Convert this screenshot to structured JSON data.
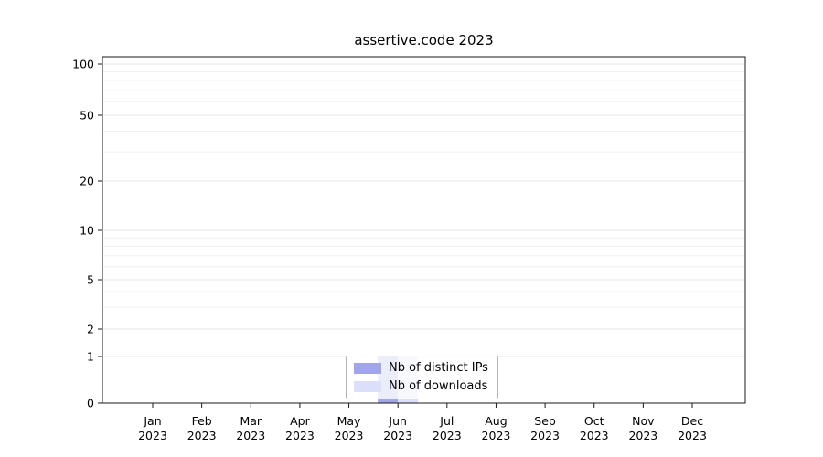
{
  "title": "assertive.code 2023",
  "chart_data": {
    "type": "bar",
    "title": "assertive.code 2023",
    "categories": [
      "Jan 2023",
      "Feb 2023",
      "Mar 2023",
      "Apr 2023",
      "May 2023",
      "Jun 2023",
      "Jul 2023",
      "Aug 2023",
      "Sep 2023",
      "Oct 2023",
      "Nov 2023",
      "Dec 2023"
    ],
    "series": [
      {
        "name": "Nb of distinct IPs",
        "color": "#a0a6e8",
        "values": [
          0,
          0,
          0,
          0,
          0,
          1,
          0,
          0,
          0,
          0,
          0,
          0
        ]
      },
      {
        "name": "Nb of downloads",
        "color": "#dcdff9",
        "values": [
          0,
          0,
          0,
          0,
          0,
          1,
          0,
          0,
          0,
          0,
          0,
          0
        ]
      }
    ],
    "y_axis": {
      "scale": "symlog",
      "ticks": [
        0,
        1,
        2,
        5,
        10,
        20,
        50,
        100
      ],
      "minor_gridlines": [
        3,
        4,
        6,
        7,
        8,
        9,
        30,
        40,
        60,
        70,
        80,
        90
      ],
      "max": 110
    },
    "grid": true,
    "legend_position": "lower center"
  }
}
